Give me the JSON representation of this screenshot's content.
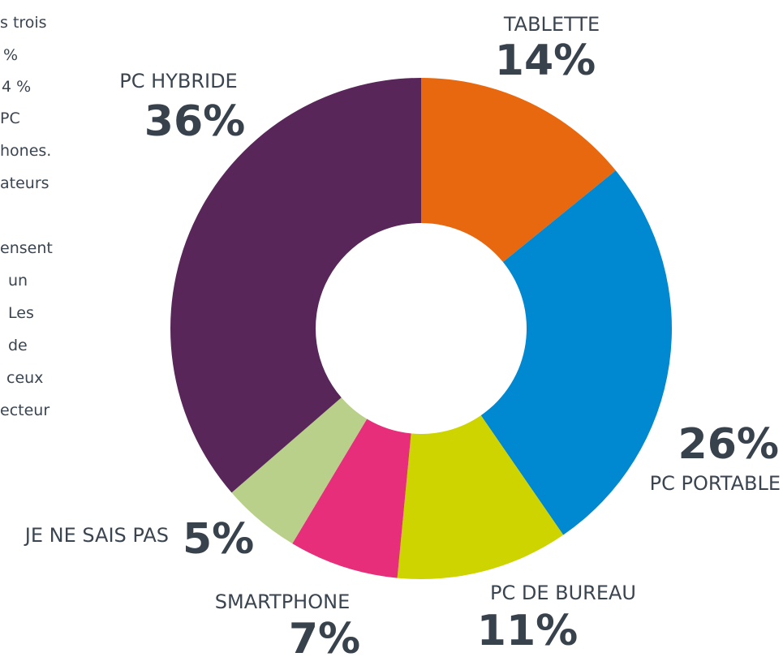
{
  "chart_data": {
    "type": "donut",
    "categories": [
      "TABLETTE",
      "PC PORTABLE",
      "PC DE BUREAU",
      "SMARTPHONE",
      "JE NE SAIS PAS",
      "PC HYBRIDE"
    ],
    "values": [
      14,
      26,
      11,
      7,
      5,
      36
    ],
    "value_labels": [
      "14%",
      "26%",
      "11%",
      "7%",
      "5%",
      "36%"
    ],
    "colors": [
      "#e8680f",
      "#0088d1",
      "#cdd400",
      "#e62e7b",
      "#b9d08a",
      "#582659"
    ]
  },
  "text_fragments": [
    "s trois",
    "%",
    "4 %",
    "PC",
    "hones.",
    "ateurs",
    "ensent",
    "un",
    "Les",
    "de",
    "ceux",
    "ecteur"
  ]
}
